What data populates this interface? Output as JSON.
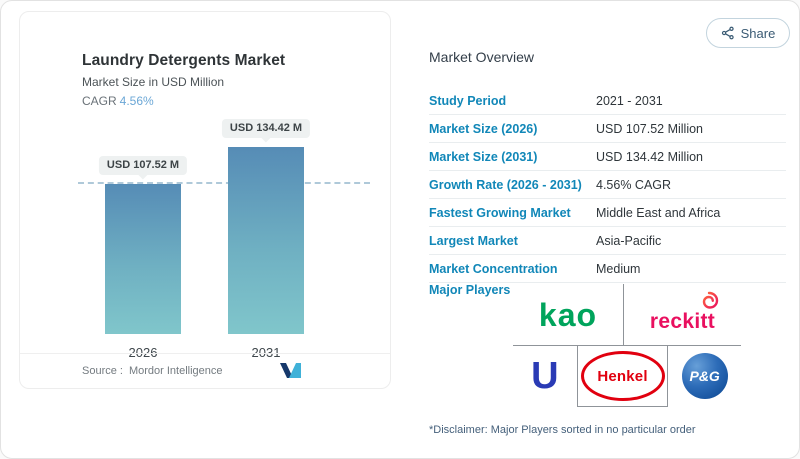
{
  "share": {
    "label": "Share"
  },
  "chart_card": {
    "title": "Laundry Detergents Market",
    "subtitle": "Market Size in USD Million",
    "cagr_label": "CAGR",
    "cagr_value": "4.56%",
    "source_label": "Source :",
    "source_value": "Mordor Intelligence"
  },
  "chart_data": {
    "type": "bar",
    "title": "Laundry Detergents Market",
    "ylabel": "Market Size in USD Million",
    "categories": [
      "2026",
      "2031"
    ],
    "values": [
      107.52,
      134.42
    ],
    "bar_labels": [
      "USD 107.52 M",
      "USD 134.42 M"
    ],
    "ylim": [
      0,
      134.42
    ],
    "reference_line": 107.52,
    "bar_gradient": [
      "#568cb6",
      "#80c6cb"
    ],
    "grid": false,
    "legend": "none"
  },
  "overview": {
    "heading": "Market Overview",
    "rows": [
      {
        "label": "Study Period",
        "value": "2021 - 2031"
      },
      {
        "label": "Market Size (2026)",
        "value": "USD 107.52 Million"
      },
      {
        "label": "Market Size (2031)",
        "value": "USD 134.42 Million"
      },
      {
        "label": "Growth Rate (2026 - 2031)",
        "value": "4.56% CAGR"
      },
      {
        "label": "Fastest Growing Market",
        "value": "Middle East and Africa"
      },
      {
        "label": "Largest Market",
        "value": "Asia-Pacific"
      },
      {
        "label": "Market Concentration",
        "value": "Medium"
      }
    ],
    "major_players_label": "Major Players",
    "players": [
      "Kao",
      "Reckitt",
      "Unilever",
      "Henkel",
      "P&G"
    ],
    "logo_text": {
      "kao": "kao",
      "reckitt": "reckitt",
      "unilever": "U",
      "henkel": "Henkel",
      "pg": "P&G"
    },
    "disclaimer": "*Disclaimer: Major Players sorted in no particular order"
  },
  "colors": {
    "accent_label": "#1187b8",
    "cagr_value": "#6ba7d6",
    "bar_top": "#568cb6",
    "bar_bottom": "#80c6cb",
    "kao_green": "#00a45c",
    "reckitt_pink": "#e9105f",
    "unilever_blue": "#2a3bb5",
    "henkel_red": "#e1000f",
    "pg_blue": "#09448f"
  }
}
